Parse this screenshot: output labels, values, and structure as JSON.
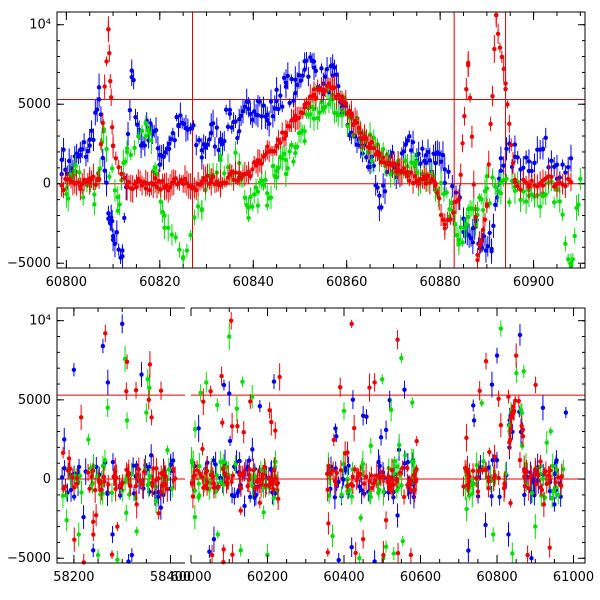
{
  "chart_data": [
    {
      "type": "scatter",
      "title": "",
      "xlabel": "",
      "ylabel": "",
      "xlim": [
        60798,
        60911
      ],
      "ylim": [
        -5300,
        10800
      ],
      "x_ticks": [
        60800,
        60820,
        60840,
        60860,
        60880,
        60900
      ],
      "y_ticks": [
        -5000,
        0,
        5000,
        10000
      ],
      "y_tick_labels": [
        "−5000",
        "0",
        "5000",
        "10⁴"
      ],
      "grid": false,
      "reference_lines_y": [
        0,
        5300
      ],
      "reference_lines_x": [
        60827,
        60883,
        60894
      ],
      "reference_color": "#e00000",
      "series": [
        {
          "color": "#0000ee",
          "points": [
            [
              60799,
              1500
            ],
            [
              60801,
              900
            ],
            [
              60803,
              1800
            ],
            [
              60805,
              2400
            ],
            [
              60807,
              5300
            ],
            [
              60809,
              -2200
            ],
            [
              60810,
              -3300
            ],
            [
              60812,
              -4200
            ],
            [
              60814,
              6700
            ],
            [
              60816,
              2400
            ],
            [
              60818,
              3800
            ],
            [
              60820,
              1800
            ],
            [
              60822,
              2500
            ],
            [
              60824,
              3700
            ],
            [
              60826,
              3400
            ],
            [
              60829,
              2100
            ],
            [
              60831,
              3200
            ],
            [
              60833,
              2800
            ],
            [
              60835,
              4400
            ],
            [
              60837,
              3300
            ],
            [
              60839,
              4700
            ],
            [
              60841,
              5200
            ],
            [
              60843,
              4000
            ],
            [
              60845,
              5200
            ],
            [
              60847,
              6100
            ],
            [
              60849,
              5700
            ],
            [
              60851,
              7700
            ],
            [
              60853,
              7300
            ],
            [
              60855,
              6300
            ],
            [
              60857,
              6800
            ],
            [
              60859,
              4900
            ],
            [
              60861,
              3200
            ],
            [
              60863,
              2400
            ],
            [
              60865,
              1400
            ],
            [
              60867,
              -1500
            ],
            [
              60869,
              1300
            ],
            [
              60871,
              900
            ],
            [
              60873,
              2700
            ],
            [
              60875,
              1800
            ],
            [
              60877,
              1800
            ],
            [
              60879,
              1300
            ],
            [
              60881,
              900
            ],
            [
              60885,
              -2200
            ],
            [
              60887,
              -2800
            ],
            [
              60889,
              -3500
            ],
            [
              60891,
              -4100
            ],
            [
              60893,
              1600
            ],
            [
              60896,
              1700
            ],
            [
              60899,
              1400
            ],
            [
              60902,
              2200
            ],
            [
              60905,
              1200
            ],
            [
              60908,
              1600
            ]
          ]
        },
        {
          "color": "#00dd00",
          "points": [
            [
              60800,
              -300
            ],
            [
              60802,
              800
            ],
            [
              60806,
              -1300
            ],
            [
              60808,
              3300
            ],
            [
              60811,
              -1700
            ],
            [
              60813,
              2000
            ],
            [
              60817,
              3800
            ],
            [
              60819,
              1000
            ],
            [
              60821,
              -2000
            ],
            [
              60825,
              -4700
            ],
            [
              60829,
              -1600
            ],
            [
              60833,
              1500
            ],
            [
              60837,
              1300
            ],
            [
              60839,
              -1500
            ],
            [
              60841,
              -500
            ],
            [
              60843,
              -600
            ],
            [
              60845,
              800
            ],
            [
              60847,
              1500
            ],
            [
              60849,
              2300
            ],
            [
              60851,
              3300
            ],
            [
              60853,
              4700
            ],
            [
              60855,
              4800
            ],
            [
              60857,
              5300
            ],
            [
              60859,
              4600
            ],
            [
              60861,
              4100
            ],
            [
              60863,
              3200
            ],
            [
              60865,
              2500
            ],
            [
              60867,
              1600
            ],
            [
              60869,
              1500
            ],
            [
              60871,
              1400
            ],
            [
              60873,
              1100
            ],
            [
              60875,
              700
            ],
            [
              60877,
              400
            ],
            [
              60879,
              -300
            ],
            [
              60882,
              -1600
            ],
            [
              60884,
              -3800
            ],
            [
              60886,
              -2100
            ],
            [
              60888,
              -1600
            ],
            [
              60890,
              -300
            ],
            [
              60893,
              -600
            ],
            [
              60896,
              -200
            ],
            [
              60899,
              -400
            ],
            [
              60902,
              -600
            ],
            [
              60905,
              -300
            ],
            [
              60908,
              -5000
            ],
            [
              60910,
              300
            ]
          ]
        },
        {
          "color": "#ee0000",
          "points": [
            [
              60799,
              -100
            ],
            [
              60801,
              100
            ],
            [
              60803,
              -200
            ],
            [
              60805,
              100
            ],
            [
              60807,
              300
            ],
            [
              60809,
              9700
            ],
            [
              60810,
              2400
            ],
            [
              60813,
              -200
            ],
            [
              60815,
              100
            ],
            [
              60817,
              -300
            ],
            [
              60819,
              0
            ],
            [
              60821,
              -200
            ],
            [
              60823,
              100
            ],
            [
              60825,
              0
            ],
            [
              60827,
              -200
            ],
            [
              60829,
              100
            ],
            [
              60831,
              300
            ],
            [
              60833,
              -100
            ],
            [
              60835,
              600
            ],
            [
              60837,
              400
            ],
            [
              60839,
              700
            ],
            [
              60841,
              1300
            ],
            [
              60843,
              2000
            ],
            [
              60845,
              2400
            ],
            [
              60847,
              3200
            ],
            [
              60849,
              4000
            ],
            [
              60851,
              4800
            ],
            [
              60853,
              5600
            ],
            [
              60855,
              5900
            ],
            [
              60857,
              6000
            ],
            [
              60859,
              5200
            ],
            [
              60861,
              4200
            ],
            [
              60863,
              3200
            ],
            [
              60865,
              2500
            ],
            [
              60867,
              1800
            ],
            [
              60869,
              1300
            ],
            [
              60871,
              900
            ],
            [
              60873,
              500
            ],
            [
              60875,
              200
            ],
            [
              60877,
              300
            ],
            [
              60879,
              -100
            ],
            [
              60881,
              -2800
            ],
            [
              60884,
              -1000
            ],
            [
              60886,
              7600
            ],
            [
              60888,
              -4800
            ],
            [
              60890,
              -1300
            ],
            [
              60892,
              10600
            ],
            [
              60894,
              6300
            ],
            [
              60896,
              100
            ],
            [
              60899,
              -200
            ],
            [
              60902,
              200
            ],
            [
              60905,
              0
            ],
            [
              60908,
              100
            ]
          ]
        }
      ]
    },
    {
      "type": "scatter",
      "title": "",
      "xlabel": "",
      "ylabel": "",
      "segments": [
        {
          "xlim": [
            58165,
            58430
          ],
          "x_ticks": [
            58200,
            58400
          ]
        },
        {
          "xlim": [
            60000,
            61030
          ],
          "x_ticks": [
            60000,
            60200,
            60400,
            60600,
            60800,
            61000
          ]
        }
      ],
      "ylim": [
        -5300,
        10800
      ],
      "y_ticks": [
        -5000,
        0,
        5000,
        10000
      ],
      "y_tick_labels": [
        "−5000",
        "0",
        "5000",
        "10⁴"
      ],
      "grid": false,
      "reference_lines_y": [
        0,
        5300
      ],
      "reference_color": "#e00000",
      "series": [
        {
          "color": "#0000ee",
          "points": [
            [
              58180,
              2500
            ],
            [
              58200,
              6900
            ],
            [
              58220,
              -2400
            ],
            [
              58240,
              -4500
            ],
            [
              58260,
              8400
            ],
            [
              58280,
              -3500
            ],
            [
              58300,
              9800
            ],
            [
              58320,
              -4800
            ],
            [
              58340,
              6600
            ],
            [
              58360,
              1500
            ],
            [
              58380,
              -1800
            ],
            [
              58400,
              900
            ],
            [
              60020,
              3200
            ],
            [
              60060,
              -3800
            ],
            [
              60100,
              5400
            ],
            [
              60140,
              -1700
            ],
            [
              60180,
              4600
            ],
            [
              60220,
              -900
            ],
            [
              60380,
              2700
            ],
            [
              60420,
              -4300
            ],
            [
              60450,
              4000
            ],
            [
              60480,
              -5200
            ],
            [
              60510,
              3100
            ],
            [
              60540,
              -2300
            ],
            [
              60580,
              1200
            ],
            [
              60740,
              3700
            ],
            [
              60770,
              -2900
            ],
            [
              60800,
              7800
            ],
            [
              60830,
              -3500
            ],
            [
              60860,
              9100
            ],
            [
              60890,
              -5000
            ],
            [
              60920,
              4500
            ],
            [
              60950,
              -1600
            ],
            [
              60980,
              4200
            ]
          ]
        },
        {
          "color": "#00dd00",
          "points": [
            [
              58185,
              -2600
            ],
            [
              58210,
              -3500
            ],
            [
              58230,
              2500
            ],
            [
              58250,
              -4800
            ],
            [
              58270,
              4500
            ],
            [
              58290,
              -5100
            ],
            [
              58310,
              3700
            ],
            [
              58330,
              -3300
            ],
            [
              58350,
              4200
            ],
            [
              58370,
              -1400
            ],
            [
              60010,
              -2400
            ],
            [
              60040,
              6100
            ],
            [
              60070,
              -3500
            ],
            [
              60100,
              9000
            ],
            [
              60130,
              -4500
            ],
            [
              60160,
              5200
            ],
            [
              60190,
              -2100
            ],
            [
              60370,
              -3600
            ],
            [
              60400,
              4300
            ],
            [
              60440,
              -5000
            ],
            [
              60470,
              2100
            ],
            [
              60500,
              6300
            ],
            [
              60530,
              -4700
            ],
            [
              60560,
              1500
            ],
            [
              60760,
              4800
            ],
            [
              60790,
              -3500
            ],
            [
              60810,
              9500
            ],
            [
              60840,
              -4700
            ],
            [
              60870,
              6800
            ],
            [
              60900,
              -3000
            ],
            [
              60930,
              2300
            ],
            [
              60960,
              -1000
            ]
          ]
        },
        {
          "color": "#ee0000",
          "points": [
            [
              58190,
              1300
            ],
            [
              58215,
              3900
            ],
            [
              58240,
              -2700
            ],
            [
              58265,
              9200
            ],
            [
              58290,
              -3000
            ],
            [
              58310,
              7400
            ],
            [
              58330,
              -1600
            ],
            [
              58355,
              5000
            ],
            [
              58380,
              -800
            ],
            [
              60005,
              -1100
            ],
            [
              60030,
              1900
            ],
            [
              60055,
              -4800
            ],
            [
              60080,
              6500
            ],
            [
              60105,
              10000
            ],
            [
              60130,
              -2000
            ],
            [
              60155,
              4900
            ],
            [
              60180,
              -1500
            ],
            [
              60210,
              3600
            ],
            [
              60360,
              800
            ],
            [
              60390,
              5800
            ],
            [
              60420,
              9800
            ],
            [
              60450,
              -3800
            ],
            [
              60480,
              6100
            ],
            [
              60510,
              -2600
            ],
            [
              60540,
              8800
            ],
            [
              60565,
              700
            ],
            [
              60590,
              2400
            ],
            [
              60720,
              2600
            ],
            [
              60750,
              -800
            ],
            [
              60780,
              1700
            ],
            [
              60810,
              3400
            ],
            [
              60830,
              5200
            ],
            [
              60850,
              7800
            ],
            [
              60860,
              1200
            ],
            [
              60880,
              -4800
            ],
            [
              60900,
              600
            ],
            [
              60930,
              -300
            ],
            [
              60960,
              100
            ]
          ]
        }
      ]
    }
  ]
}
